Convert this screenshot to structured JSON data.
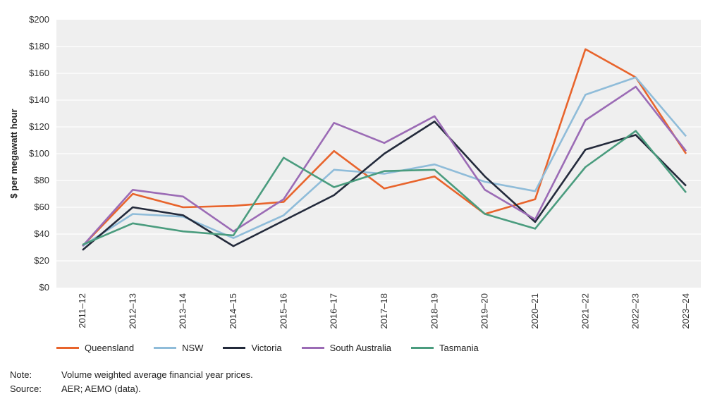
{
  "chart_data": {
    "type": "line",
    "title": "",
    "xlabel": "",
    "ylabel": "$ per megawatt hour",
    "ylim": [
      0,
      200
    ],
    "yticks": [
      "$0",
      "$20",
      "$40",
      "$60",
      "$80",
      "$100",
      "$120",
      "$140",
      "$160",
      "$180",
      "$200"
    ],
    "ytick_values": [
      0,
      20,
      40,
      60,
      80,
      100,
      120,
      140,
      160,
      180,
      200
    ],
    "categories": [
      "2011–12",
      "2012–13",
      "2013–14",
      "2014–15",
      "2015–16",
      "2016–17",
      "2017–18",
      "2018–19",
      "2019–20",
      "2020–21",
      "2021–22",
      "2022–23",
      "2023–24"
    ],
    "grid": true,
    "legend_position": "bottom",
    "series": [
      {
        "name": "Queensland",
        "color": "#e8642c",
        "values": [
          31,
          70,
          60,
          61,
          64,
          102,
          74,
          83,
          55,
          66,
          178,
          157,
          100
        ]
      },
      {
        "name": "NSW",
        "color": "#8fbcd9",
        "values": [
          31,
          55,
          53,
          37,
          54,
          88,
          85,
          92,
          79,
          72,
          144,
          157,
          113
        ]
      },
      {
        "name": "Victoria",
        "color": "#232a3b",
        "values": [
          28,
          60,
          54,
          31,
          50,
          69,
          100,
          124,
          83,
          49,
          103,
          114,
          76
        ]
      },
      {
        "name": "South Australia",
        "color": "#9b6bb5",
        "values": [
          31,
          73,
          68,
          42,
          66,
          123,
          108,
          128,
          73,
          51,
          125,
          150,
          102
        ]
      },
      {
        "name": "Tasmania",
        "color": "#4a9c7e",
        "values": [
          32,
          48,
          42,
          39,
          97,
          75,
          87,
          88,
          55,
          44,
          90,
          117,
          71
        ]
      }
    ]
  },
  "notes": [
    {
      "key": "Note:",
      "text": "Volume weighted average financial year prices."
    },
    {
      "key": "Source:",
      "text": "AER; AEMO (data)."
    }
  ]
}
